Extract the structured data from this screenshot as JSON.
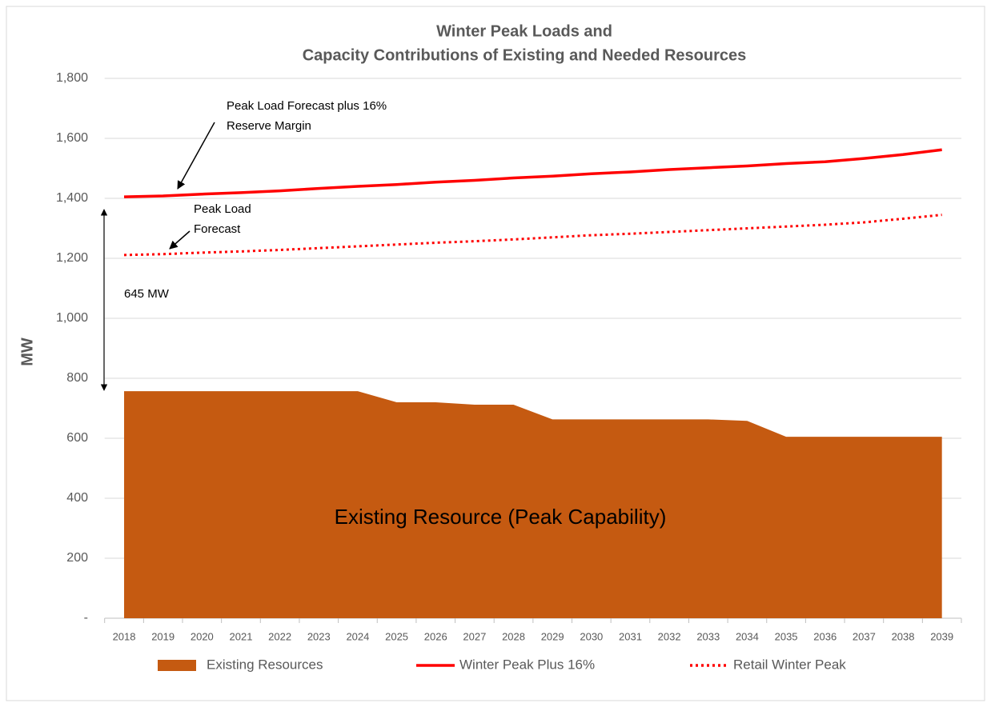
{
  "chart_data": {
    "type": "area-line",
    "title": [
      "Winter Peak Loads and",
      "Capacity Contributions of Existing and Needed Resources"
    ],
    "ylabel": "MW",
    "categories": [
      "2018",
      "2019",
      "2020",
      "2021",
      "2022",
      "2023",
      "2024",
      "2025",
      "2026",
      "2027",
      "2028",
      "2029",
      "2030",
      "2031",
      "2032",
      "2033",
      "2034",
      "2035",
      "2036",
      "2037",
      "2038",
      "2039"
    ],
    "series": [
      {
        "name": "Existing Resources",
        "kind": "area",
        "color": "#c55a11",
        "values": [
          757,
          757,
          757,
          757,
          757,
          757,
          757,
          720,
          720,
          712,
          712,
          663,
          663,
          663,
          663,
          663,
          658,
          605,
          605,
          605,
          605,
          605
        ]
      },
      {
        "name": "Winter Peak Plus 16%",
        "kind": "line",
        "style": "solid",
        "color": "#ff0000",
        "values": [
          1405,
          1408,
          1414,
          1419,
          1425,
          1433,
          1440,
          1446,
          1454,
          1460,
          1468,
          1474,
          1482,
          1488,
          1496,
          1502,
          1508,
          1516,
          1522,
          1533,
          1546,
          1562
        ]
      },
      {
        "name": "Retail Winter Peak",
        "kind": "line",
        "style": "dotted",
        "color": "#ff0000",
        "values": [
          1211,
          1214,
          1219,
          1223,
          1228,
          1234,
          1240,
          1246,
          1252,
          1257,
          1263,
          1270,
          1277,
          1282,
          1288,
          1294,
          1300,
          1306,
          1312,
          1320,
          1332,
          1345
        ]
      }
    ],
    "ylim": [
      0,
      1800
    ],
    "yticks": [
      {
        "value": 0,
        "label": "-"
      },
      {
        "value": 200,
        "label": "200"
      },
      {
        "value": 400,
        "label": "400"
      },
      {
        "value": 600,
        "label": "600"
      },
      {
        "value": 800,
        "label": "800"
      },
      {
        "value": 1000,
        "label": "1,000"
      },
      {
        "value": 1200,
        "label": "1,200"
      },
      {
        "value": 1400,
        "label": "1,400"
      },
      {
        "value": 1600,
        "label": "1,600"
      },
      {
        "value": 1800,
        "label": "1,800"
      }
    ],
    "grid": true,
    "legend": "bottom",
    "annotations": [
      "Peak Load Forecast plus 16%",
      "Reserve Margin",
      "Peak Load",
      "Forecast",
      "645 MW",
      "Existing Resource  (Peak Capability)"
    ]
  }
}
